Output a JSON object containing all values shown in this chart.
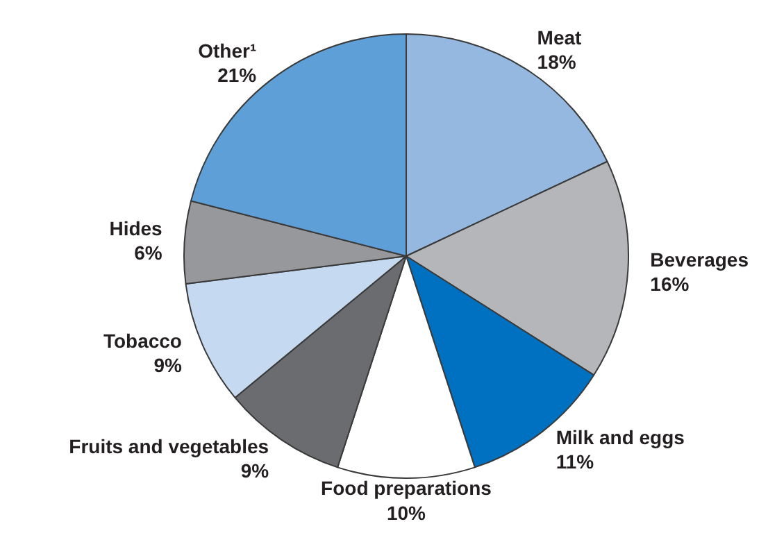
{
  "chart_data": {
    "type": "pie",
    "categories": [
      "Meat",
      "Beverages",
      "Milk and eggs",
      "Food preparations",
      "Fruits and vegetables",
      "Tobacco",
      "Hides",
      "Other¹"
    ],
    "values": [
      18,
      16,
      11,
      10,
      9,
      9,
      6,
      21
    ],
    "colors": [
      "#94b8e0",
      "#b4b6b9",
      "#0070c0",
      "#ffffff",
      "#6a6c70",
      "#c5d9f0",
      "#96989c",
      "#5e9fd8"
    ],
    "value_labels": [
      "18%",
      "16%",
      "11%",
      "10%",
      "9%",
      "9%",
      "6%",
      "21%"
    ]
  }
}
